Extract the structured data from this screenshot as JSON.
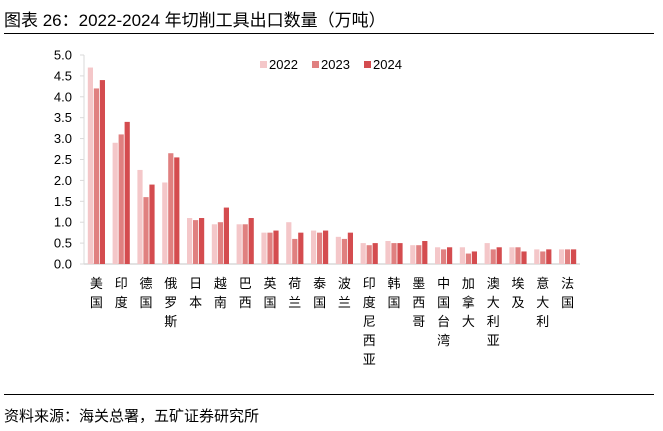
{
  "title": "图表 26：2022-2024 年切削工具出口数量（万吨）",
  "source": "资料来源：海关总署，五矿证券研究所",
  "chart_data": {
    "type": "bar",
    "title": "图表 26：2022-2024 年切削工具出口数量（万吨）",
    "xlabel": "",
    "ylabel": "",
    "ylim": [
      0,
      5.0
    ],
    "yticks": [
      "0.0",
      "0.5",
      "1.0",
      "1.5",
      "2.0",
      "2.5",
      "3.0",
      "3.5",
      "4.0",
      "4.5",
      "5.0"
    ],
    "grid": false,
    "legend_position": "top-center",
    "categories": [
      "美国",
      "印度",
      "德国",
      "俄罗斯",
      "日本",
      "越南",
      "巴西",
      "英国",
      "荷兰",
      "泰国",
      "波兰",
      "印度尼西亚",
      "韩国",
      "墨西哥",
      "中国台湾",
      "加拿大",
      "澳大利亚",
      "埃及",
      "意大利",
      "法国"
    ],
    "series": [
      {
        "name": "2022",
        "color": "#f4c7c9",
        "values": [
          4.7,
          2.9,
          2.25,
          1.95,
          1.1,
          0.95,
          0.95,
          0.75,
          1.0,
          0.8,
          0.65,
          0.5,
          0.55,
          0.45,
          0.4,
          0.4,
          0.5,
          0.4,
          0.35,
          0.35
        ]
      },
      {
        "name": "2023",
        "color": "#e08080",
        "values": [
          4.2,
          3.1,
          1.6,
          2.65,
          1.05,
          1.0,
          0.95,
          0.75,
          0.6,
          0.75,
          0.6,
          0.45,
          0.5,
          0.45,
          0.35,
          0.25,
          0.35,
          0.4,
          0.3,
          0.35
        ]
      },
      {
        "name": "2024",
        "color": "#d44c4f",
        "values": [
          4.4,
          3.4,
          1.9,
          2.55,
          1.1,
          1.35,
          1.1,
          0.8,
          0.75,
          0.8,
          0.75,
          0.5,
          0.5,
          0.55,
          0.4,
          0.3,
          0.4,
          0.3,
          0.35,
          0.35
        ]
      }
    ]
  }
}
